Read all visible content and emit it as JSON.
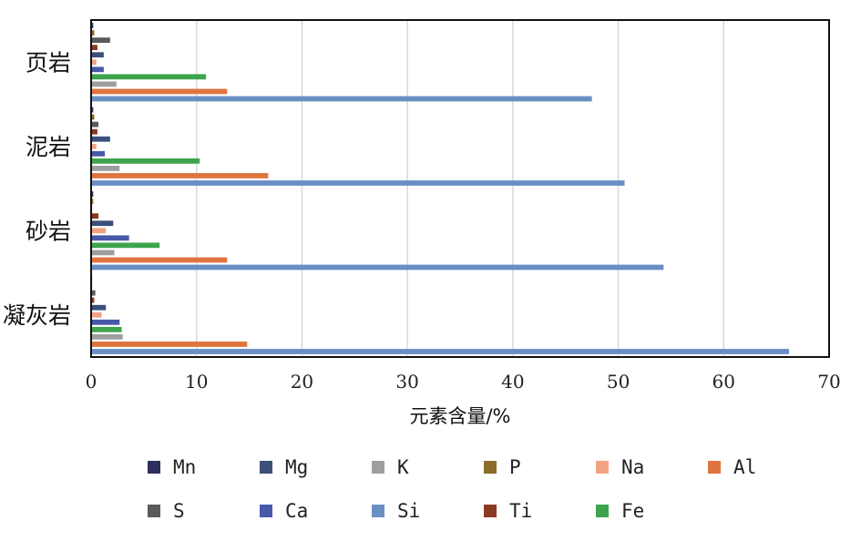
{
  "chart_data": {
    "type": "bar",
    "orientation": "horizontal",
    "categories": [
      "页岩",
      "泥岩",
      "砂岩",
      "凝灰岩"
    ],
    "xlabel": "元素含量/%",
    "ylabel": "",
    "xlim": [
      0,
      70
    ],
    "xticks": [
      "0",
      "10",
      "20",
      "30",
      "40",
      "50",
      "60",
      "70"
    ],
    "grid": "vertical",
    "legend_position": "bottom",
    "series": [
      {
        "name": "Mn",
        "color": "#2e2f5c",
        "values": [
          0.2,
          0.2,
          0.2,
          0.1
        ]
      },
      {
        "name": "S",
        "color": "#5a5a5a",
        "values": [
          1.8,
          0.7,
          0.1,
          0.4
        ]
      },
      {
        "name": "Mg",
        "color": "#3b4f7a",
        "values": [
          1.2,
          1.8,
          2.1,
          1.4
        ]
      },
      {
        "name": "Ca",
        "color": "#4759a8",
        "values": [
          1.2,
          1.3,
          3.6,
          2.7
        ]
      },
      {
        "name": "K",
        "color": "#9e9e9e",
        "values": [
          2.4,
          2.7,
          2.2,
          3.0
        ]
      },
      {
        "name": "Si",
        "color": "#6a8fc4",
        "values": [
          47.5,
          50.6,
          54.3,
          66.2
        ]
      },
      {
        "name": "P",
        "color": "#8a6d2a",
        "values": [
          0.3,
          0.3,
          0.2,
          0.1
        ]
      },
      {
        "name": "Ti",
        "color": "#8b3a22",
        "values": [
          0.6,
          0.6,
          0.7,
          0.3
        ]
      },
      {
        "name": "Na",
        "color": "#f2a383",
        "values": [
          0.5,
          0.5,
          1.4,
          1.0
        ]
      },
      {
        "name": "Fe",
        "color": "#3da44d",
        "values": [
          10.9,
          10.3,
          6.5,
          2.9
        ]
      },
      {
        "name": "Al",
        "color": "#e0743e",
        "values": [
          12.9,
          16.8,
          12.9,
          14.8
        ]
      }
    ],
    "draw_order_top_to_bottom": [
      "Mn",
      "P",
      "S",
      "Ti",
      "Mg",
      "Na",
      "Ca",
      "Fe",
      "K",
      "Al",
      "Si"
    ],
    "legend_order": [
      [
        "Mn",
        "Mg",
        "K",
        "P",
        "Na",
        "Al"
      ],
      [
        "S",
        "Ca",
        "Si",
        "Ti",
        "Fe"
      ]
    ]
  }
}
